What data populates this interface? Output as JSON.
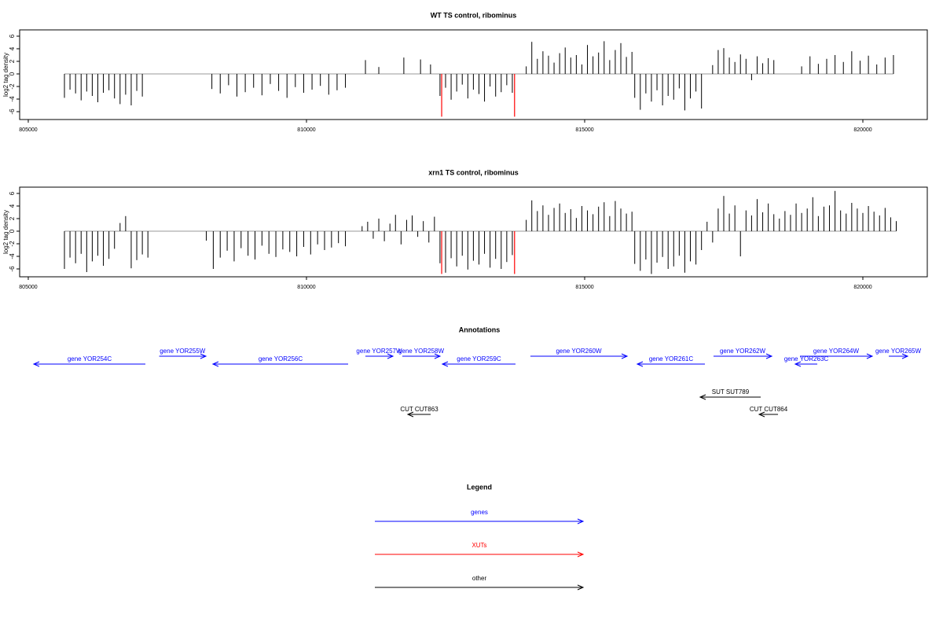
{
  "chart_data": [
    {
      "type": "bar",
      "title": "WT TS control, ribominus",
      "y_label": "log2 tag density",
      "xlim": [
        804845,
        821158
      ],
      "ylim": [
        -7.25,
        7
      ],
      "xticks": [
        805000,
        810000,
        815000,
        820000
      ],
      "yticks": [
        -6,
        -4,
        -2,
        0,
        2,
        4,
        6
      ],
      "color": "#000000",
      "x": [
        805650,
        805750,
        805850,
        805950,
        806050,
        806150,
        806250,
        806350,
        806450,
        806550,
        806650,
        806750,
        806850,
        806950,
        807050,
        808300,
        808450,
        808600,
        808750,
        808900,
        809050,
        809200,
        809350,
        809500,
        809650,
        809800,
        809950,
        810100,
        810250,
        810400,
        810550,
        810700,
        811060,
        811300,
        811750,
        812050,
        812230,
        812400,
        812500,
        812600,
        812700,
        812800,
        812900,
        813000,
        813100,
        813200,
        813300,
        813400,
        813500,
        813600,
        813700,
        813950,
        814050,
        814150,
        814250,
        814350,
        814450,
        814550,
        814650,
        814750,
        814850,
        814950,
        815050,
        815150,
        815250,
        815350,
        815450,
        815550,
        815650,
        815750,
        815850,
        815900,
        816000,
        816100,
        816200,
        816300,
        816400,
        816500,
        816600,
        816700,
        816800,
        816900,
        817000,
        817100,
        817300,
        817400,
        817500,
        817600,
        817700,
        817800,
        817900,
        818000,
        818100,
        818200,
        818300,
        818400,
        818900,
        819050,
        819200,
        819350,
        819500,
        819650,
        819800,
        819950,
        820100,
        820250,
        820400,
        820550
      ],
      "values": [
        -3.8,
        -2.5,
        -3.1,
        -4.2,
        -2.8,
        -3.5,
        -4.5,
        -3.0,
        -2.6,
        -3.9,
        -4.8,
        -3.3,
        -5.0,
        -2.7,
        -3.6,
        -2.4,
        -3.1,
        -1.8,
        -3.6,
        -2.9,
        -2.2,
        -3.4,
        -1.6,
        -2.7,
        -3.8,
        -2.1,
        -3.0,
        -2.5,
        -1.9,
        -3.3,
        -2.6,
        -2.2,
        2.2,
        1.1,
        2.6,
        2.3,
        1.5,
        -3.5,
        -2.2,
        -4.1,
        -2.8,
        -1.7,
        -3.9,
        -2.5,
        -3.2,
        -4.4,
        -2.0,
        -3.6,
        -2.9,
        -1.8,
        -3.0,
        1.2,
        5.1,
        2.4,
        3.6,
        2.9,
        1.8,
        3.3,
        4.2,
        2.6,
        3.0,
        1.5,
        4.6,
        2.8,
        3.4,
        5.2,
        2.2,
        3.8,
        4.9,
        2.7,
        3.5,
        -3.8,
        -5.7,
        -3.1,
        -4.4,
        -2.6,
        -5.0,
        -3.5,
        -4.1,
        -2.3,
        -5.8,
        -3.9,
        -2.8,
        -5.5,
        1.4,
        3.8,
        4.1,
        2.6,
        1.9,
        3.1,
        2.4,
        -1.0,
        2.8,
        1.7,
        2.5,
        2.2,
        1.2,
        2.8,
        1.6,
        2.4,
        3.0,
        1.9,
        3.6,
        2.1,
        2.9,
        1.5,
        2.6,
        3.0
      ],
      "highlight_color": "#ff0000",
      "highlight_x": [
        812430,
        813740
      ],
      "highlight_values": [
        -6.8,
        -6.8
      ]
    },
    {
      "type": "bar",
      "title": "xrn1 TS control, ribominus",
      "y_label": "log2 tag density",
      "xlim": [
        804845,
        821158
      ],
      "ylim": [
        -7.25,
        7
      ],
      "xticks": [
        805000,
        810000,
        815000,
        820000
      ],
      "yticks": [
        -6,
        -4,
        -2,
        0,
        2,
        4,
        6
      ],
      "color": "#000000",
      "x": [
        805650,
        805750,
        805850,
        805950,
        806050,
        806150,
        806250,
        806350,
        806450,
        806550,
        806650,
        806750,
        806850,
        806950,
        807050,
        807150,
        808200,
        808325,
        808450,
        808575,
        808700,
        808825,
        808950,
        809075,
        809200,
        809325,
        809450,
        809575,
        809700,
        809825,
        809950,
        810075,
        810200,
        810325,
        810450,
        810575,
        810700,
        811000,
        811100,
        811200,
        811300,
        811400,
        811500,
        811600,
        811700,
        811800,
        811900,
        812000,
        812100,
        812200,
        812300,
        812400,
        812500,
        812600,
        812700,
        812800,
        812900,
        813000,
        813100,
        813200,
        813300,
        813400,
        813500,
        813600,
        813700,
        813950,
        814050,
        814150,
        814250,
        814350,
        814450,
        814550,
        814650,
        814750,
        814850,
        814950,
        815050,
        815150,
        815250,
        815350,
        815450,
        815550,
        815650,
        815750,
        815850,
        815900,
        816000,
        816100,
        816200,
        816300,
        816400,
        816500,
        816600,
        816700,
        816800,
        816900,
        817000,
        817100,
        817200,
        817300,
        817400,
        817500,
        817600,
        817700,
        817800,
        817900,
        818000,
        818100,
        818200,
        818300,
        818400,
        818500,
        818600,
        818700,
        818800,
        818900,
        819000,
        819100,
        819200,
        819300,
        819400,
        819500,
        819600,
        819700,
        819800,
        819900,
        820000,
        820100,
        820200,
        820300,
        820400,
        820500,
        820600
      ],
      "values": [
        -6.0,
        -4.2,
        -5.1,
        -3.6,
        -6.5,
        -4.8,
        -3.9,
        -5.5,
        -4.4,
        -2.8,
        1.3,
        2.4,
        -5.9,
        -4.6,
        -3.7,
        -4.2,
        -1.5,
        -6.0,
        -4.2,
        -3.1,
        -4.8,
        -2.7,
        -3.9,
        -4.5,
        -2.3,
        -3.6,
        -4.1,
        -2.9,
        -3.3,
        -4.0,
        -2.5,
        -3.7,
        -2.1,
        -3.0,
        -2.6,
        -1.9,
        -2.4,
        0.8,
        1.5,
        -1.2,
        2.0,
        -1.6,
        1.2,
        2.6,
        -2.1,
        1.8,
        2.5,
        -0.9,
        1.6,
        -1.8,
        2.3,
        -5.1,
        -6.6,
        -4.3,
        -5.6,
        -3.9,
        -6.1,
        -4.7,
        -5.3,
        -3.6,
        -5.8,
        -4.4,
        -6.0,
        -4.9,
        -3.8,
        1.8,
        4.9,
        3.2,
        4.1,
        2.6,
        3.7,
        4.4,
        2.9,
        3.5,
        2.1,
        4.0,
        3.3,
        2.7,
        3.9,
        4.6,
        2.4,
        4.8,
        3.6,
        2.8,
        3.1,
        -5.2,
        -6.3,
        -4.5,
        -6.8,
        -5.0,
        -4.1,
        -6.0,
        -5.6,
        -3.9,
        -6.6,
        -4.8,
        -5.3,
        -3.0,
        1.5,
        -1.8,
        3.6,
        5.6,
        2.8,
        4.1,
        -4.0,
        3.3,
        2.5,
        5.1,
        3.0,
        4.4,
        2.7,
        2.0,
        3.2,
        2.6,
        4.4,
        2.9,
        3.6,
        5.4,
        2.4,
        3.9,
        4.1,
        6.4,
        3.3,
        2.8,
        4.5,
        3.6,
        2.9,
        4.0,
        3.1,
        2.5,
        3.7,
        2.2,
        1.6
      ],
      "highlight_color": "#ff0000",
      "highlight_x": [
        812430,
        813740
      ],
      "highlight_values": [
        -6.8,
        -6.8
      ]
    }
  ],
  "annotations": {
    "title": "Annotations",
    "genes": {
      "color": "#0000ff",
      "items": [
        {
          "label": "gene YOR254C",
          "start": 807105,
          "end": 805099
        },
        {
          "label": "gene YOR255W",
          "start": 807353,
          "end": 808192
        },
        {
          "label": "gene YOR256C",
          "start": 810749,
          "end": 808319
        },
        {
          "label": "gene YOR257W",
          "start": 811059,
          "end": 811554
        },
        {
          "label": "gene YOR258W",
          "start": 811723,
          "end": 812401
        },
        {
          "label": "gene YOR259C",
          "start": 813757,
          "end": 812443
        },
        {
          "label": "gene YOR260W",
          "start": 814025,
          "end": 815763
        },
        {
          "label": "gene YOR261C",
          "start": 817161,
          "end": 815946
        },
        {
          "label": "gene YOR262W",
          "start": 817316,
          "end": 818362
        },
        {
          "label": "gene YOR263C",
          "start": 819181,
          "end": 818785
        },
        {
          "label": "gene YOR264W",
          "start": 818870,
          "end": 820169
        },
        {
          "label": "gene YOR265W",
          "start": 820466,
          "end": 820805
        }
      ]
    },
    "suts": {
      "color": "#000000",
      "items": [
        {
          "label": "SUT SUT789",
          "start": 818164,
          "end": 817076
        }
      ]
    },
    "cuts": {
      "color": "#000000",
      "items": [
        {
          "label": "CUT CUT863",
          "start": 812232,
          "end": 811822
        },
        {
          "label": "CUT CUT864",
          "start": 818475,
          "end": 818136
        }
      ]
    }
  },
  "legend": {
    "title": "Legend",
    "items": [
      {
        "label": "genes",
        "color": "#0000ff"
      },
      {
        "label": "XUTs",
        "color": "#ff0000"
      },
      {
        "label": "other",
        "color": "#000000"
      }
    ]
  }
}
